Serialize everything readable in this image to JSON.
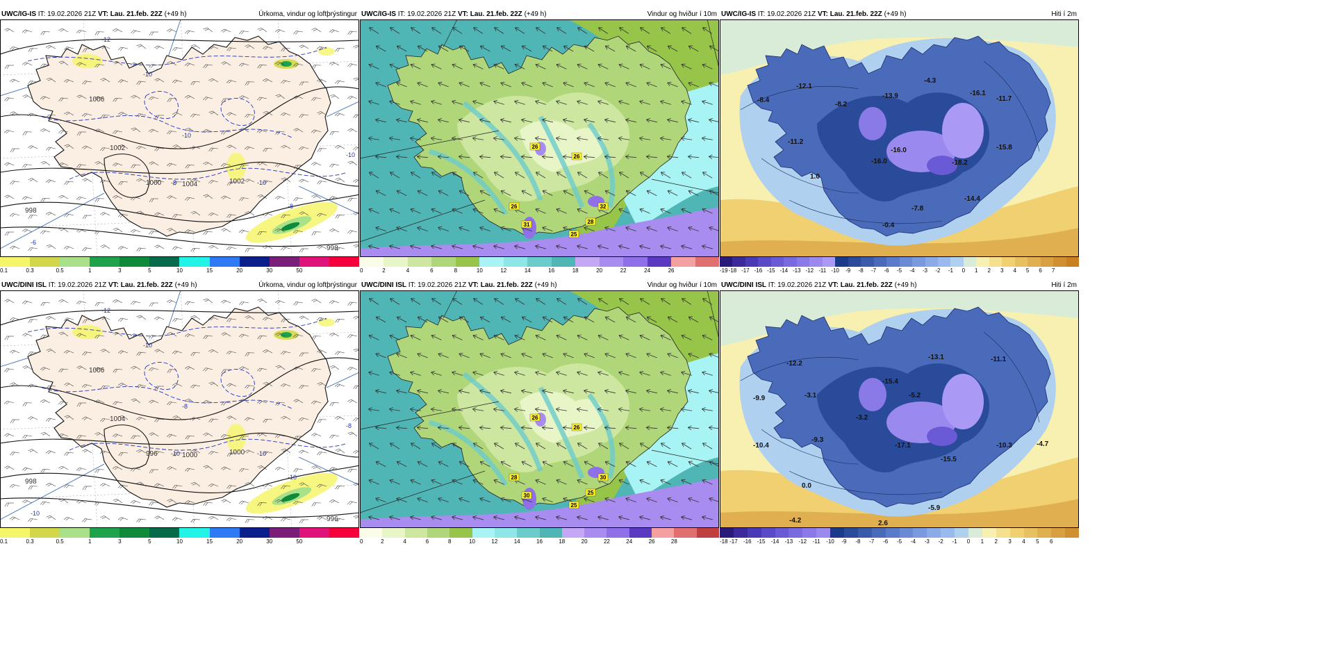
{
  "panels": [
    {
      "id": "p1",
      "model": "UWC/IG-IS",
      "it_label": "IT:",
      "it": "19.02.2026 21Z",
      "vt_label": "VT:",
      "vt": "Lau. 21.feb. 22Z",
      "lead": "(+49 h)",
      "title": "Úrkoma, vindur og loftþrýstingur",
      "type": "precip",
      "ticks": [
        "0.1",
        "0.3",
        "0.5",
        "1",
        "3",
        "5",
        "10",
        "15",
        "20",
        "30",
        "50"
      ],
      "colors": [
        "#f5f56a",
        "#d2d64a",
        "#a9e08a",
        "#1ea24a",
        "#0e8a3a",
        "#076a4a",
        "#21f3e7",
        "#2e7af5",
        "#0a1e8c",
        "#7a1e7a",
        "#e0137a",
        "#f5003a"
      ],
      "isobars": [
        "1006",
        "1002",
        "1004",
        "1002",
        "998",
        "998",
        "1000"
      ],
      "temps": [
        "-12",
        "-10",
        "-10",
        "-8",
        "-10",
        "-8",
        "-6",
        "-10"
      ]
    },
    {
      "id": "p2",
      "model": "UWC/IG-IS",
      "it_label": "IT:",
      "it": "19.02.2026 21Z",
      "vt_label": "VT:",
      "vt": "Lau. 21.feb. 22Z",
      "lead": "(+49 h)",
      "title": "Vindur og hviður í 10m",
      "type": "wind",
      "ticks": [
        "0",
        "2",
        "4",
        "6",
        "8",
        "10",
        "12",
        "14",
        "16",
        "18",
        "20",
        "22",
        "24",
        "26"
      ],
      "colors": [
        "#fbfce8",
        "#e8f5c6",
        "#cde6a0",
        "#b0d67a",
        "#96c54a",
        "#a8f3f3",
        "#8ee6e6",
        "#6ccccc",
        "#4fb5b5",
        "#c4a8f5",
        "#a98cf0",
        "#8f70e8",
        "#5a3ac0",
        "#f5a0a0",
        "#e07070"
      ],
      "gusts": [
        "26",
        "26",
        "26",
        "31",
        "32",
        "28",
        "25"
      ]
    },
    {
      "id": "p3",
      "model": "UWC/IG-IS",
      "it_label": "IT:",
      "it": "19.02.2026 21Z",
      "vt_label": "VT:",
      "vt": "Lau. 21.feb. 22Z",
      "lead": "(+49 h)",
      "title": "Hiti í 2m",
      "type": "temp",
      "ticks": [
        "-19",
        "-18",
        "-17",
        "-16",
        "-15",
        "-14",
        "-13",
        "-12",
        "-11",
        "-10",
        "-9",
        "-8",
        "-7",
        "-6",
        "-5",
        "-4",
        "-3",
        "-2",
        "-1",
        "0",
        "1",
        "2",
        "3",
        "4",
        "5",
        "6",
        "7"
      ],
      "colors": [
        "#2a1a7a",
        "#3a2a9a",
        "#4a3ab5",
        "#5a4ac8",
        "#6a5ad5",
        "#7a6ae0",
        "#8a7ae8",
        "#9a8aef",
        "#aa9af5",
        "#1a3a8a",
        "#2a4a9a",
        "#3a5aaa",
        "#4a6aba",
        "#5a7aca",
        "#6a8ad5",
        "#7a9ae0",
        "#8aaae8",
        "#9abaef",
        "#b0d0f0",
        "#d8ecd8",
        "#f8f0b0",
        "#f5e090",
        "#f0d070",
        "#e8c060",
        "#e0b050",
        "#d8a040",
        "#d09030",
        "#c88020"
      ],
      "temps": [
        "-8.4",
        "-12.1",
        "-8.2",
        "-4.3",
        "-13.9",
        "-16.1",
        "-11.7",
        "-11.2",
        "-16.0",
        "-16.0",
        "-18.2",
        "-15.8",
        "1.0",
        "-7.8",
        "-14.4",
        "-0.4"
      ]
    },
    {
      "id": "p4",
      "model": "UWC/DINI ISL",
      "it_label": "IT:",
      "it": "19.02.2026 21Z",
      "vt_label": "VT:",
      "vt": "Lau. 21.feb. 22Z",
      "lead": "(+49 h)",
      "title": "Úrkoma, vindur og loftþrýstingur",
      "type": "precip",
      "ticks": [
        "0.1",
        "0.3",
        "0.5",
        "1",
        "3",
        "5",
        "10",
        "15",
        "20",
        "30",
        "50"
      ],
      "colors": [
        "#f5f56a",
        "#d2d64a",
        "#a9e08a",
        "#1ea24a",
        "#0e8a3a",
        "#076a4a",
        "#21f3e7",
        "#2e7af5",
        "#0a1e8c",
        "#7a1e7a",
        "#e0137a",
        "#f5003a"
      ],
      "isobars": [
        "1006",
        "1004",
        "1000",
        "1000",
        "998",
        "996",
        "996"
      ],
      "temps": [
        "-12",
        "-10",
        "-8",
        "-10",
        "-10",
        "-10",
        "-10",
        "-8"
      ]
    },
    {
      "id": "p5",
      "model": "UWC/DINI ISL",
      "it_label": "IT:",
      "it": "19.02.2026 21Z",
      "vt_label": "VT:",
      "vt": "Lau. 21.feb. 22Z",
      "lead": "(+49 h)",
      "title": "Vindur og hviður í 10m",
      "type": "wind",
      "ticks": [
        "0",
        "2",
        "4",
        "6",
        "8",
        "10",
        "12",
        "14",
        "16",
        "18",
        "20",
        "22",
        "24",
        "26",
        "28"
      ],
      "colors": [
        "#fbfce8",
        "#e8f5c6",
        "#cde6a0",
        "#b0d67a",
        "#96c54a",
        "#a8f3f3",
        "#8ee6e6",
        "#6ccccc",
        "#4fb5b5",
        "#c4a8f5",
        "#a98cf0",
        "#8f70e8",
        "#5a3ac0",
        "#f5a0a0",
        "#e07070",
        "#c04040"
      ],
      "gusts": [
        "26",
        "26",
        "28",
        "30",
        "30",
        "25",
        "25"
      ]
    },
    {
      "id": "p6",
      "model": "UWC/DINI ISL",
      "it_label": "IT:",
      "it": "19.02.2026 21Z",
      "vt_label": "VT:",
      "vt": "Lau. 21.feb. 22Z",
      "lead": "(+49 h)",
      "title": "Hiti í 2m",
      "type": "temp",
      "ticks": [
        "-18",
        "-17",
        "-16",
        "-15",
        "-14",
        "-13",
        "-12",
        "-11",
        "-10",
        "-9",
        "-8",
        "-7",
        "-6",
        "-5",
        "-4",
        "-3",
        "-2",
        "-1",
        "0",
        "1",
        "2",
        "3",
        "4",
        "5",
        "6"
      ],
      "colors": [
        "#2a1a7a",
        "#3a2a9a",
        "#4a3ab5",
        "#5a4ac8",
        "#6a5ad5",
        "#7a6ae0",
        "#8a7ae8",
        "#9a8aef",
        "#1a3a8a",
        "#2a4a9a",
        "#3a5aaa",
        "#4a6aba",
        "#5a7aca",
        "#6a8ad5",
        "#7a9ae0",
        "#8aaae8",
        "#9abaef",
        "#b0d0f0",
        "#d8ecd8",
        "#f8f0b0",
        "#f5e090",
        "#f0d070",
        "#e8c060",
        "#e0b050",
        "#d8a040",
        "#d09030"
      ],
      "temps": [
        "-11.1",
        "-12.2",
        "-9.9",
        "-13.1",
        "-15.4",
        "-5.2",
        "-3.1",
        "-3.2",
        "-9.3",
        "-10.4",
        "-17.1",
        "-10.3",
        "-4.7",
        "0.0",
        "-15.5",
        "-5.9",
        "-4.2",
        "2.6"
      ]
    }
  ]
}
